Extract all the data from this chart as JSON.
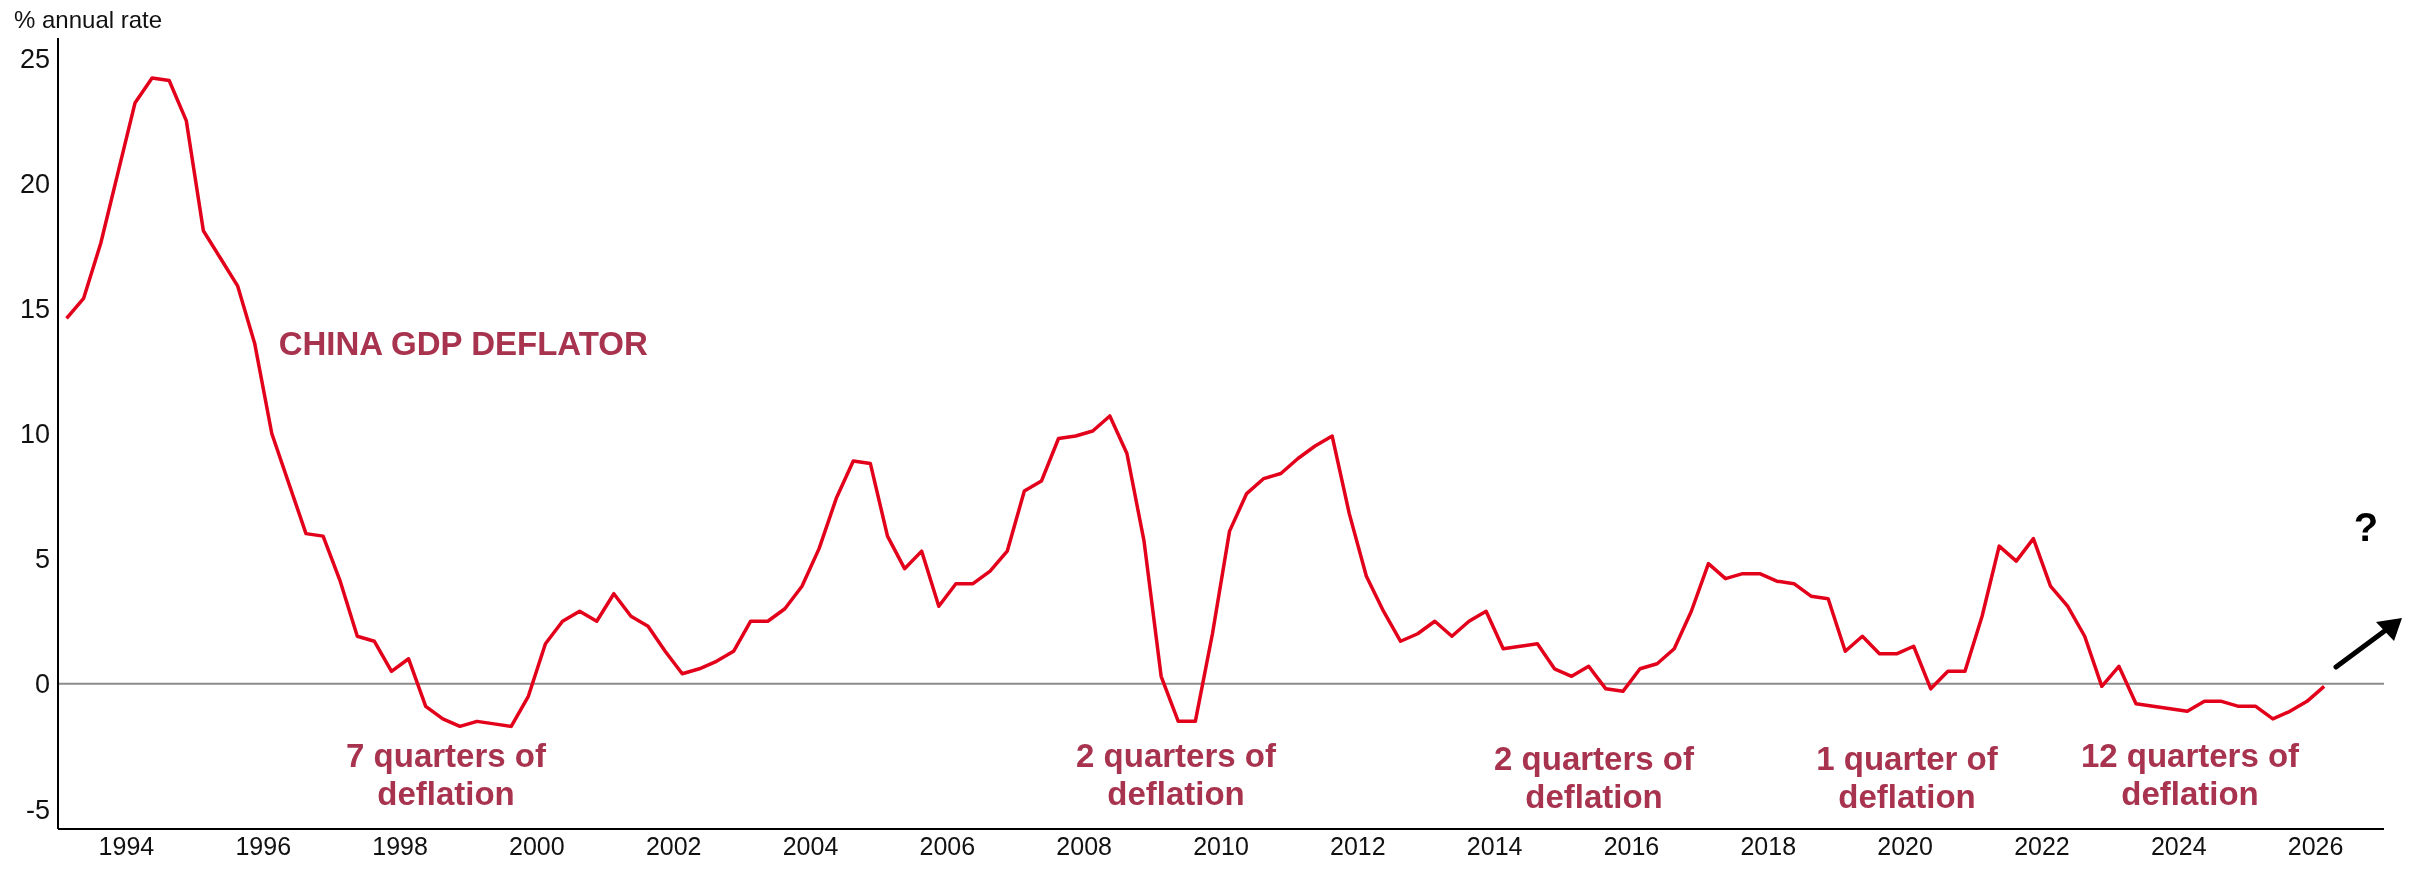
{
  "chart_data": {
    "type": "line",
    "ylabel": "% annual rate",
    "x": [
      1993.125,
      1993.375,
      1993.625,
      1993.875,
      1994.125,
      1994.375,
      1994.625,
      1994.875,
      1995.125,
      1995.375,
      1995.625,
      1995.875,
      1996.125,
      1996.375,
      1996.625,
      1996.875,
      1997.125,
      1997.375,
      1997.625,
      1997.875,
      1998.125,
      1998.375,
      1998.625,
      1998.875,
      1999.125,
      1999.375,
      1999.625,
      1999.875,
      2000.125,
      2000.375,
      2000.625,
      2000.875,
      2001.125,
      2001.375,
      2001.625,
      2001.875,
      2002.125,
      2002.375,
      2002.625,
      2002.875,
      2003.125,
      2003.375,
      2003.625,
      2003.875,
      2004.125,
      2004.375,
      2004.625,
      2004.875,
      2005.125,
      2005.375,
      2005.625,
      2005.875,
      2006.125,
      2006.375,
      2006.625,
      2006.875,
      2007.125,
      2007.375,
      2007.625,
      2007.875,
      2008.125,
      2008.375,
      2008.625,
      2008.875,
      2009.125,
      2009.375,
      2009.625,
      2009.875,
      2010.125,
      2010.375,
      2010.625,
      2010.875,
      2011.125,
      2011.375,
      2011.625,
      2011.875,
      2012.125,
      2012.375,
      2012.625,
      2012.875,
      2013.125,
      2013.375,
      2013.625,
      2013.875,
      2014.125,
      2014.375,
      2014.625,
      2014.875,
      2015.125,
      2015.375,
      2015.625,
      2015.875,
      2016.125,
      2016.375,
      2016.625,
      2016.875,
      2017.125,
      2017.375,
      2017.625,
      2017.875,
      2018.125,
      2018.375,
      2018.625,
      2018.875,
      2019.125,
      2019.375,
      2019.625,
      2019.875,
      2020.125,
      2020.375,
      2020.625,
      2020.875,
      2021.125,
      2021.375,
      2021.625,
      2021.875,
      2022.125,
      2022.375,
      2022.625,
      2022.875,
      2023.125,
      2023.375,
      2023.625,
      2023.875,
      2024.125,
      2024.375,
      2024.625,
      2024.875,
      2025.125,
      2025.375,
      2025.625,
      2025.875,
      2026.125
    ],
    "series": [
      {
        "name": "CHINA GDP DEFLATOR",
        "color": "#e2001a",
        "values": [
          14.6,
          15.4,
          17.6,
          20.4,
          23.2,
          24.2,
          24.1,
          22.5,
          18.1,
          17.0,
          15.9,
          13.6,
          10.0,
          8.0,
          6.0,
          5.9,
          4.1,
          1.9,
          1.7,
          0.5,
          1.0,
          -0.9,
          -1.4,
          -1.7,
          -1.5,
          -1.6,
          -1.7,
          -0.5,
          1.6,
          2.5,
          2.9,
          2.5,
          3.6,
          2.7,
          2.3,
          1.3,
          0.4,
          0.6,
          0.9,
          1.3,
          2.5,
          2.5,
          3.0,
          3.9,
          5.4,
          7.4,
          8.9,
          8.8,
          5.9,
          4.6,
          5.3,
          3.1,
          4.0,
          4.0,
          4.5,
          5.3,
          7.7,
          8.1,
          9.8,
          9.9,
          10.1,
          10.7,
          9.2,
          5.7,
          0.3,
          -1.5,
          -1.5,
          2.0,
          6.1,
          7.6,
          8.2,
          8.4,
          9.0,
          9.5,
          9.9,
          6.8,
          4.3,
          2.9,
          1.7,
          2.0,
          2.5,
          1.9,
          2.5,
          2.9,
          1.4,
          1.5,
          1.6,
          0.6,
          0.3,
          0.7,
          -0.2,
          -0.3,
          0.6,
          0.8,
          1.4,
          2.9,
          4.8,
          4.2,
          4.4,
          4.4,
          4.1,
          4.0,
          3.5,
          3.4,
          1.3,
          1.9,
          1.2,
          1.2,
          1.5,
          -0.2,
          0.5,
          0.5,
          2.7,
          5.5,
          4.9,
          5.8,
          3.9,
          3.1,
          1.9,
          -0.1,
          0.7,
          -0.8,
          -0.9,
          -1.0,
          -1.1,
          -0.7,
          -0.7,
          -0.9,
          -0.9,
          -1.4,
          -1.1,
          -0.7,
          -0.1
        ]
      }
    ],
    "xlim": [
      1993,
      2027
    ],
    "xticks": [
      1994,
      1996,
      1998,
      2000,
      2002,
      2004,
      2006,
      2008,
      2010,
      2012,
      2014,
      2016,
      2018,
      2020,
      2022,
      2024,
      2026
    ],
    "ylim": [
      -5.8,
      25.8
    ],
    "yticks": [
      -5,
      0,
      5,
      10,
      15,
      20,
      25
    ],
    "ref_lines": [
      {
        "axis": "y",
        "value": 0,
        "color": "#8c8c8c"
      }
    ],
    "annotations": [
      "7 quarters of deflation",
      "2 quarters of deflation",
      "2 quarters of deflation",
      "1 quarter of deflation",
      "12 quarters of deflation",
      "?"
    ],
    "marker": "none",
    "line_style": "solid"
  }
}
